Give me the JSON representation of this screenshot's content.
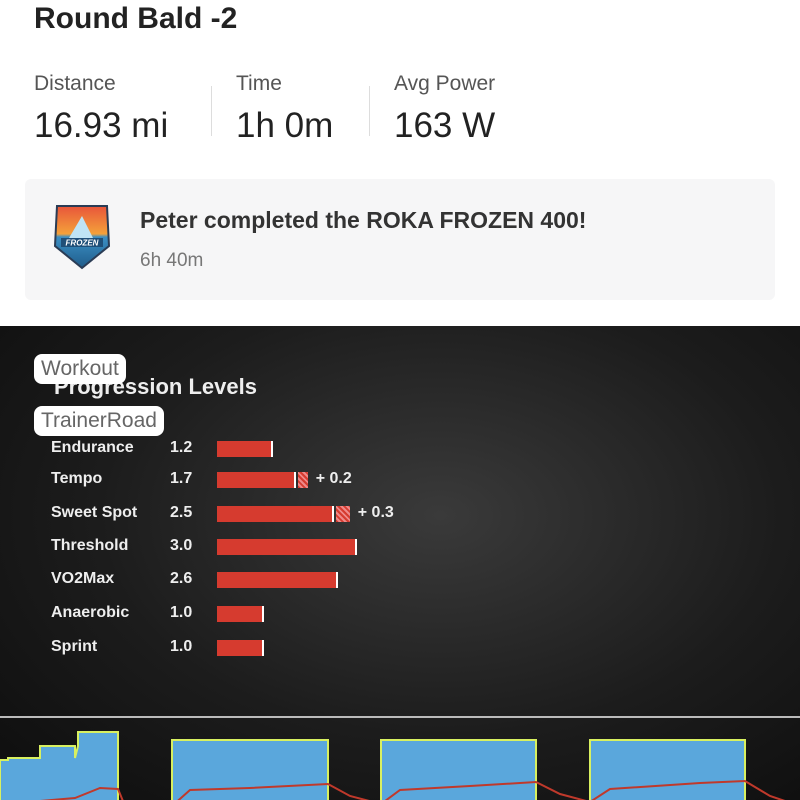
{
  "activity": {
    "title": "Round Bald -2"
  },
  "stats": [
    {
      "label": "Distance",
      "value": "16.93 mi"
    },
    {
      "label": "Time",
      "value": "1h 0m"
    },
    {
      "label": "Avg Power",
      "value": "163 W"
    }
  ],
  "achievement": {
    "title": "Peter completed the ROKA FROZEN 400!",
    "time": "6h 40m",
    "badge_text": "ROKA FROZEN 400"
  },
  "photo_tags": [
    "Workout",
    "TrainerRoad"
  ],
  "chart_data": {
    "type": "bar",
    "title": "Progression Levels",
    "categories": [
      "Endurance",
      "Tempo",
      "Sweet Spot",
      "Threshold",
      "VO2Max",
      "Anaerobic",
      "Sprint"
    ],
    "values": [
      1.2,
      1.7,
      2.5,
      3.0,
      2.6,
      1.0,
      1.0
    ],
    "value_labels": [
      "1.2",
      "1.7",
      "2.5",
      "3.0",
      "2.6",
      "1.0",
      "1.0"
    ],
    "deltas": [
      null,
      "+ 0.2",
      "+ 0.3",
      null,
      null,
      null,
      null
    ],
    "delta_values": [
      0,
      0.2,
      0.3,
      0,
      0,
      0,
      0
    ],
    "bar_color": "#d63b2f"
  },
  "workout_colors": {
    "target": "#5aa7dc",
    "outline": "#d8f060",
    "power": "#c0392b"
  }
}
